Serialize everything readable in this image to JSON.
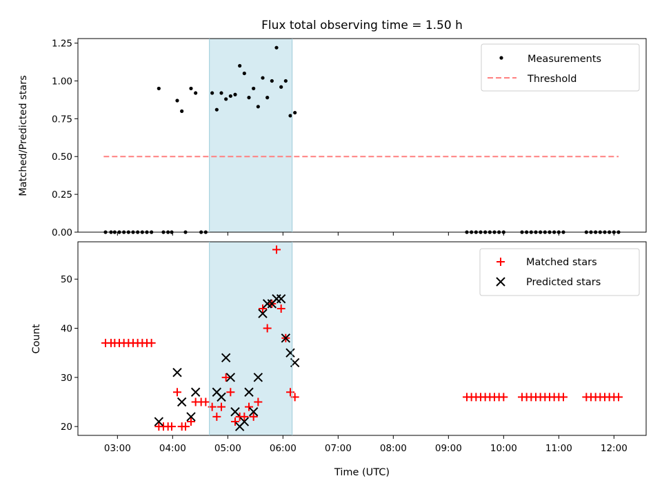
{
  "chart_data": [
    {
      "type": "scatter",
      "title": "Flux total observing time = 1.50 h",
      "xlabel": "",
      "ylabel": "Matched/Predicted stars",
      "xlim": [
        "02:17",
        "12:35"
      ],
      "ylim": [
        0,
        1.28
      ],
      "yticks": [
        "0.00",
        "0.25",
        "0.50",
        "0.75",
        "1.00",
        "1.25"
      ],
      "shaded_interval": [
        "04:40",
        "06:10"
      ],
      "shaded_color": "#add8e6",
      "legend_position": "upper-right",
      "legend": [
        "Measurements",
        "Threshold"
      ],
      "series": [
        {
          "name": "Measurements",
          "marker": "dot",
          "color": "#000000",
          "points": [
            [
              "02:47",
              0
            ],
            [
              "02:53",
              0
            ],
            [
              "02:57",
              0
            ],
            [
              "03:02",
              0
            ],
            [
              "03:07",
              0
            ],
            [
              "03:12",
              0
            ],
            [
              "03:17",
              0
            ],
            [
              "03:22",
              0
            ],
            [
              "03:27",
              0
            ],
            [
              "03:32",
              0
            ],
            [
              "03:37",
              0
            ],
            [
              "03:45",
              0.95
            ],
            [
              "03:50",
              0
            ],
            [
              "03:55",
              0
            ],
            [
              "03:59",
              0
            ],
            [
              "04:05",
              0.87
            ],
            [
              "04:10",
              0.8
            ],
            [
              "04:14",
              0
            ],
            [
              "04:20",
              0.95
            ],
            [
              "04:25",
              0.92
            ],
            [
              "04:31",
              0
            ],
            [
              "04:36",
              0
            ],
            [
              "04:43",
              0.92
            ],
            [
              "04:48",
              0.81
            ],
            [
              "04:53",
              0.92
            ],
            [
              "04:58",
              0.88
            ],
            [
              "05:03",
              0.9
            ],
            [
              "05:08",
              0.91
            ],
            [
              "05:13",
              1.1
            ],
            [
              "05:18",
              1.05
            ],
            [
              "05:23",
              0.89
            ],
            [
              "05:28",
              0.95
            ],
            [
              "05:33",
              0.83
            ],
            [
              "05:38",
              1.02
            ],
            [
              "05:43",
              0.89
            ],
            [
              "05:48",
              1.0
            ],
            [
              "05:53",
              1.22
            ],
            [
              "05:58",
              0.96
            ],
            [
              "06:03",
              1.0
            ],
            [
              "06:08",
              0.77
            ],
            [
              "06:13",
              0.79
            ],
            [
              "09:20",
              0
            ],
            [
              "09:25",
              0
            ],
            [
              "09:30",
              0
            ],
            [
              "09:35",
              0
            ],
            [
              "09:40",
              0
            ],
            [
              "09:45",
              0
            ],
            [
              "09:50",
              0
            ],
            [
              "09:55",
              0
            ],
            [
              "10:00",
              0
            ],
            [
              "10:20",
              0
            ],
            [
              "10:25",
              0
            ],
            [
              "10:30",
              0
            ],
            [
              "10:35",
              0
            ],
            [
              "10:40",
              0
            ],
            [
              "10:45",
              0
            ],
            [
              "10:50",
              0
            ],
            [
              "10:55",
              0
            ],
            [
              "11:00",
              0
            ],
            [
              "11:05",
              0
            ],
            [
              "11:30",
              0
            ],
            [
              "11:35",
              0
            ],
            [
              "11:40",
              0
            ],
            [
              "11:45",
              0
            ],
            [
              "11:50",
              0
            ],
            [
              "11:55",
              0
            ],
            [
              "12:00",
              0
            ],
            [
              "12:05",
              0
            ]
          ]
        },
        {
          "name": "Threshold",
          "type": "line",
          "style": "dashed",
          "color": "#ff7f7f",
          "points": [
            [
              "02:45",
              0.5
            ],
            [
              "12:05",
              0.5
            ]
          ]
        }
      ]
    },
    {
      "type": "scatter",
      "title": "",
      "xlabel": "Time (UTC)",
      "ylabel": "Count",
      "xlim": [
        "02:17",
        "12:35"
      ],
      "ylim": [
        18.2,
        57.6
      ],
      "yticks": [
        "20",
        "30",
        "40",
        "50"
      ],
      "xticks": [
        "03:00",
        "04:00",
        "05:00",
        "06:00",
        "07:00",
        "08:00",
        "09:00",
        "10:00",
        "11:00",
        "12:00"
      ],
      "shaded_interval": [
        "04:40",
        "06:10"
      ],
      "shaded_color": "#add8e6",
      "legend_position": "upper-right",
      "legend": [
        "Matched stars",
        "Predicted stars"
      ],
      "series": [
        {
          "name": "Matched stars",
          "marker": "plus",
          "color": "#ff0000",
          "points": [
            [
              "02:47",
              37
            ],
            [
              "02:53",
              37
            ],
            [
              "02:57",
              37
            ],
            [
              "03:02",
              37
            ],
            [
              "03:07",
              37
            ],
            [
              "03:12",
              37
            ],
            [
              "03:17",
              37
            ],
            [
              "03:22",
              37
            ],
            [
              "03:27",
              37
            ],
            [
              "03:32",
              37
            ],
            [
              "03:37",
              37
            ],
            [
              "03:45",
              20
            ],
            [
              "03:50",
              20
            ],
            [
              "03:55",
              20
            ],
            [
              "03:59",
              20
            ],
            [
              "04:05",
              27
            ],
            [
              "04:10",
              20
            ],
            [
              "04:14",
              20
            ],
            [
              "04:20",
              21
            ],
            [
              "04:25",
              25
            ],
            [
              "04:31",
              25
            ],
            [
              "04:36",
              25
            ],
            [
              "04:43",
              24
            ],
            [
              "04:48",
              22
            ],
            [
              "04:53",
              24
            ],
            [
              "04:58",
              30
            ],
            [
              "05:03",
              27
            ],
            [
              "05:08",
              21
            ],
            [
              "05:13",
              22
            ],
            [
              "05:18",
              22
            ],
            [
              "05:23",
              24
            ],
            [
              "05:28",
              22
            ],
            [
              "05:33",
              25
            ],
            [
              "05:38",
              44
            ],
            [
              "05:43",
              40
            ],
            [
              "05:48",
              45
            ],
            [
              "05:53",
              56
            ],
            [
              "05:58",
              44
            ],
            [
              "06:03",
              38
            ],
            [
              "06:08",
              27
            ],
            [
              "06:13",
              26
            ],
            [
              "09:20",
              26
            ],
            [
              "09:25",
              26
            ],
            [
              "09:30",
              26
            ],
            [
              "09:35",
              26
            ],
            [
              "09:40",
              26
            ],
            [
              "09:45",
              26
            ],
            [
              "09:50",
              26
            ],
            [
              "09:55",
              26
            ],
            [
              "10:00",
              26
            ],
            [
              "10:20",
              26
            ],
            [
              "10:25",
              26
            ],
            [
              "10:30",
              26
            ],
            [
              "10:35",
              26
            ],
            [
              "10:40",
              26
            ],
            [
              "10:45",
              26
            ],
            [
              "10:50",
              26
            ],
            [
              "10:55",
              26
            ],
            [
              "11:00",
              26
            ],
            [
              "11:05",
              26
            ],
            [
              "11:30",
              26
            ],
            [
              "11:35",
              26
            ],
            [
              "11:40",
              26
            ],
            [
              "11:45",
              26
            ],
            [
              "11:50",
              26
            ],
            [
              "11:55",
              26
            ],
            [
              "12:00",
              26
            ],
            [
              "12:05",
              26
            ]
          ]
        },
        {
          "name": "Predicted stars",
          "marker": "x",
          "color": "#000000",
          "points": [
            [
              "03:45",
              21
            ],
            [
              "04:05",
              31
            ],
            [
              "04:10",
              25
            ],
            [
              "04:20",
              22
            ],
            [
              "04:25",
              27
            ],
            [
              "04:48",
              27
            ],
            [
              "04:53",
              26
            ],
            [
              "04:58",
              34
            ],
            [
              "05:03",
              30
            ],
            [
              "05:08",
              23
            ],
            [
              "05:13",
              20
            ],
            [
              "05:18",
              21
            ],
            [
              "05:23",
              27
            ],
            [
              "05:28",
              23
            ],
            [
              "05:33",
              30
            ],
            [
              "05:38",
              43
            ],
            [
              "05:43",
              45
            ],
            [
              "05:48",
              45
            ],
            [
              "05:53",
              46
            ],
            [
              "05:58",
              46
            ],
            [
              "06:03",
              38
            ],
            [
              "06:08",
              35
            ],
            [
              "06:13",
              33
            ]
          ]
        }
      ]
    }
  ]
}
